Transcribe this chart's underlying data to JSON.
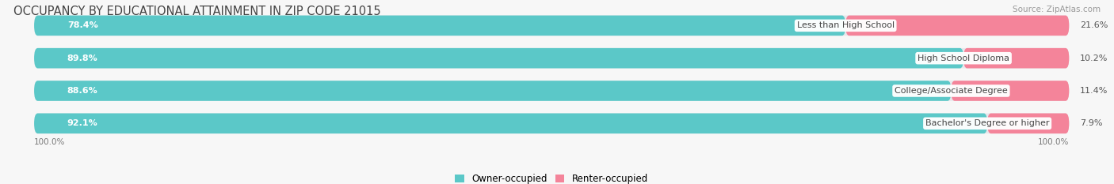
{
  "title": "OCCUPANCY BY EDUCATIONAL ATTAINMENT IN ZIP CODE 21015",
  "source": "Source: ZipAtlas.com",
  "categories": [
    "Less than High School",
    "High School Diploma",
    "College/Associate Degree",
    "Bachelor's Degree or higher"
  ],
  "owner_pct": [
    78.4,
    89.8,
    88.6,
    92.1
  ],
  "renter_pct": [
    21.6,
    10.2,
    11.4,
    7.9
  ],
  "owner_color": "#5BC8C8",
  "renter_color": "#F4849A",
  "row_bg_color": "#E8E8EC",
  "bg_color": "#f7f7f7",
  "title_fontsize": 10.5,
  "label_fontsize": 8,
  "pct_fontsize": 8,
  "bar_height": 0.62,
  "legend_owner": "Owner-occupied",
  "legend_renter": "Renter-occupied",
  "left_label": "100.0%",
  "right_label": "100.0%"
}
